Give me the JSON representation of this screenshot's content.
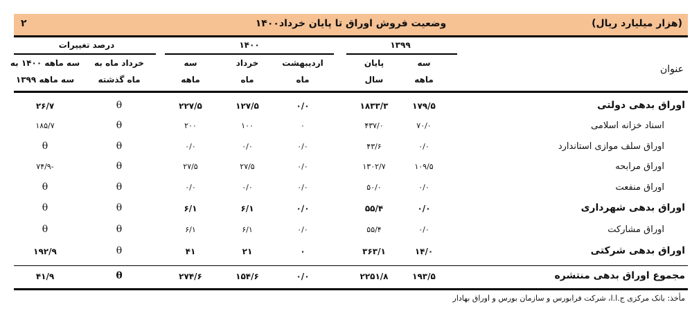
{
  "header": {
    "table_number": "۲",
    "title": "وضعیت فروش اوراق تا پایان خرداد۱۴۰۰",
    "unit": "(هزار میلیارد ریال)",
    "background_color": "#f6c193"
  },
  "groups": {
    "y1399": "۱۳۹۹",
    "y1400": "۱۴۰۰",
    "pct": "درصد تغییرات"
  },
  "columns": {
    "title": "عنوان",
    "c1": [
      "سه",
      "ماهه"
    ],
    "c2": [
      "پایان",
      "سال"
    ],
    "c3": [
      "اردیبهشت",
      "ماه"
    ],
    "c4": [
      "خرداد",
      "ماه"
    ],
    "c5": [
      "سه",
      "ماهه"
    ],
    "c6": [
      "خرداد ماه به",
      "ماه گذشته"
    ],
    "c7": [
      "سه ماهه ۱۴۰۰ به",
      "سه ماهه ۱۳۹۹"
    ]
  },
  "rows": [
    {
      "label": "اوراق بدهی دولتی",
      "bold": true,
      "values": [
        "۱۷۹/۵",
        "۱۸۳۳/۳",
        "۰/۰",
        "۱۲۷/۵",
        "۲۲۷/۵",
        "θ",
        "۲۶/۷"
      ]
    },
    {
      "label": "اسناد خزانه اسلامی",
      "bold": false,
      "values": [
        "۷۰/۰",
        "۴۳۷/۰",
        "۰",
        "۱۰۰",
        "۲۰۰",
        "θ",
        "۱۸۵/۷"
      ]
    },
    {
      "label": "اوراق سلف موازی استاندارد",
      "bold": false,
      "values": [
        "۰/۰",
        "۴۳/۶",
        "۰/۰",
        "۰/۰",
        "۰/۰",
        "θ",
        "θ"
      ]
    },
    {
      "label": "اوراق مرابحه",
      "bold": false,
      "values": [
        "۱۰۹/۵",
        "۱۳۰۲/۷",
        "۰/۰",
        "۲۷/۵",
        "۲۷/۵",
        "θ",
        "-۷۴/۹"
      ]
    },
    {
      "label": "اوراق منفعت",
      "bold": false,
      "values": [
        "۰/۰",
        "۵۰/۰",
        "۰/۰",
        "۰/۰",
        "۰/۰",
        "θ",
        "θ"
      ]
    },
    {
      "label": "اوراق بدهی شهرداری",
      "bold": true,
      "values": [
        "۰/۰",
        "۵۵/۴",
        "۰/۰",
        "۶/۱",
        "۶/۱",
        "θ",
        "θ"
      ]
    },
    {
      "label": "اوراق مشارکت",
      "bold": false,
      "values": [
        "۰/۰",
        "۵۵/۴",
        "۰/۰",
        "۶/۱",
        "۶/۱",
        "θ",
        "θ"
      ]
    },
    {
      "label": "اوراق بدهی شرکتی",
      "bold": true,
      "values": [
        "۱۴/۰",
        "۳۶۳/۱",
        "۰",
        "۲۱",
        "۴۱",
        "θ",
        "۱۹۲/۹"
      ]
    },
    {
      "label": "مجموع اوراق بدهی منتشره",
      "bold": true,
      "values": [
        "۱۹۳/۵",
        "۲۲۵۱/۸",
        "۰/۰",
        "۱۵۴/۶",
        "۲۷۴/۶",
        "θ",
        "۴۱/۹"
      ]
    }
  ],
  "source": "مأخذ: بانک مرکزی ج.ا.ا، شرکت فرابورس و سازمان بورس و اوراق بهادار"
}
